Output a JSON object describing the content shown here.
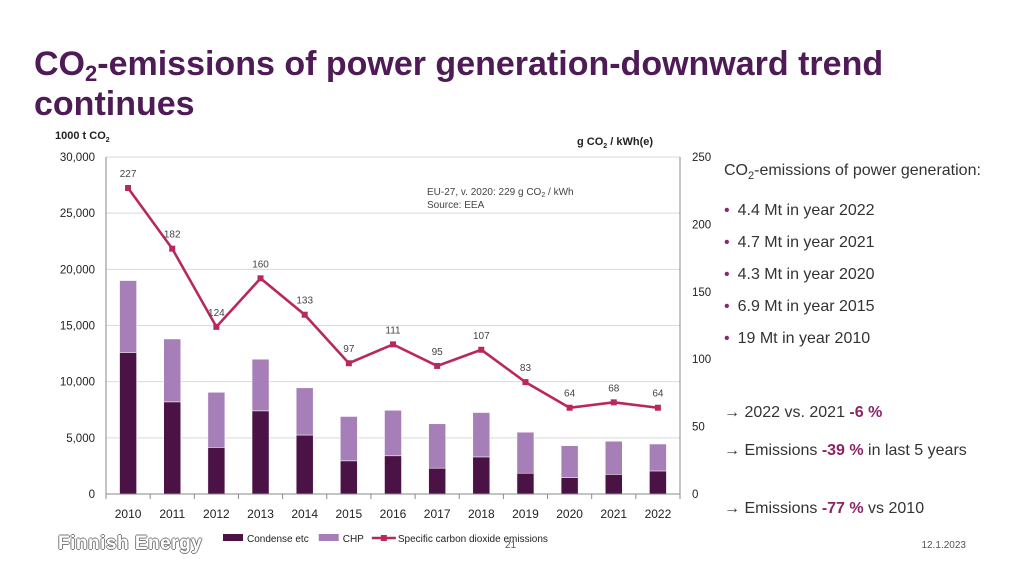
{
  "title": {
    "pre": "CO",
    "sub": "2",
    "post": "-emissions of power generation-downward trend continues"
  },
  "chart_data": {
    "type": "bar",
    "stacked": true,
    "categories": [
      "2010",
      "2011",
      "2012",
      "2013",
      "2014",
      "2015",
      "2016",
      "2017",
      "2018",
      "2019",
      "2020",
      "2021",
      "2022"
    ],
    "series": [
      {
        "name": "Condense etc",
        "type": "bar",
        "axis": "left",
        "color": "#4a1245",
        "values": [
          12600,
          8200,
          4150,
          7400,
          5250,
          2950,
          3400,
          2300,
          3300,
          1850,
          1450,
          1750,
          2050
        ]
      },
      {
        "name": "CHP",
        "type": "bar",
        "axis": "left",
        "color": "#a77fb8",
        "values": [
          6400,
          5600,
          4900,
          4600,
          4200,
          3950,
          4050,
          3950,
          3950,
          3650,
          2850,
          2950,
          2400
        ]
      },
      {
        "name": "Specific carbon dioxide emissions",
        "type": "line",
        "axis": "right",
        "color": "#b8285f",
        "values": [
          227,
          182,
          124,
          160,
          133,
          97,
          111,
          95,
          107,
          83,
          64,
          68,
          64
        ]
      }
    ],
    "line_labels": [
      "227",
      "182",
      "124",
      "160",
      "133",
      "97",
      "111",
      "95",
      "107",
      "83",
      "64",
      "68",
      "64"
    ],
    "left_axis": {
      "label": "1000 t CO",
      "label_sub": "2",
      "ylim": [
        0,
        30000
      ],
      "ticks": [
        0,
        5000,
        10000,
        15000,
        20000,
        25000,
        30000
      ],
      "tick_labels": [
        "0",
        "5,000",
        "10,000",
        "15,000",
        "20,000",
        "25,000",
        "30,000"
      ]
    },
    "right_axis": {
      "label_pre": "g CO",
      "label_sub": "2",
      "label_post": " / kWh(e)",
      "ylim": [
        0,
        250
      ],
      "ticks": [
        0,
        50,
        100,
        150,
        200,
        250
      ],
      "tick_labels": [
        "0",
        "50",
        "100",
        "150",
        "200",
        "250"
      ]
    },
    "annotation": {
      "line1_pre": "EU-27, v. 2020: 229 g CO",
      "line1_sub": "2",
      "line1_post": " / kWh",
      "line2": "Source: EEA"
    },
    "legend": {
      "position": "bottom"
    },
    "grid": true
  },
  "side": {
    "head_pre": "CO",
    "head_sub": "2",
    "head_post": "-emissions of power generation:",
    "bullets": [
      "4.4 Mt in year 2022",
      "4.7 Mt in year 2021",
      "4.3 Mt in year 2020",
      "6.9 Mt in year 2015",
      "19 Mt in year 2010"
    ],
    "notes": [
      {
        "pre": "2022 vs. 2021 ",
        "bold": "-6 %",
        "post": ""
      },
      {
        "pre": "Emissions ",
        "bold": "-39 %",
        "post": " in last 5 years"
      },
      {
        "pre": "Emissions ",
        "bold": "-77 %",
        "post": " vs 2010"
      }
    ]
  },
  "footer": {
    "logo": "Finnish Energy",
    "page": "21",
    "date": "12.1.2023"
  },
  "colors": {
    "title": "#4f1b57",
    "accent": "#8b2566",
    "condense": "#4a1245",
    "chp": "#a77fb8",
    "line": "#b8285f"
  }
}
